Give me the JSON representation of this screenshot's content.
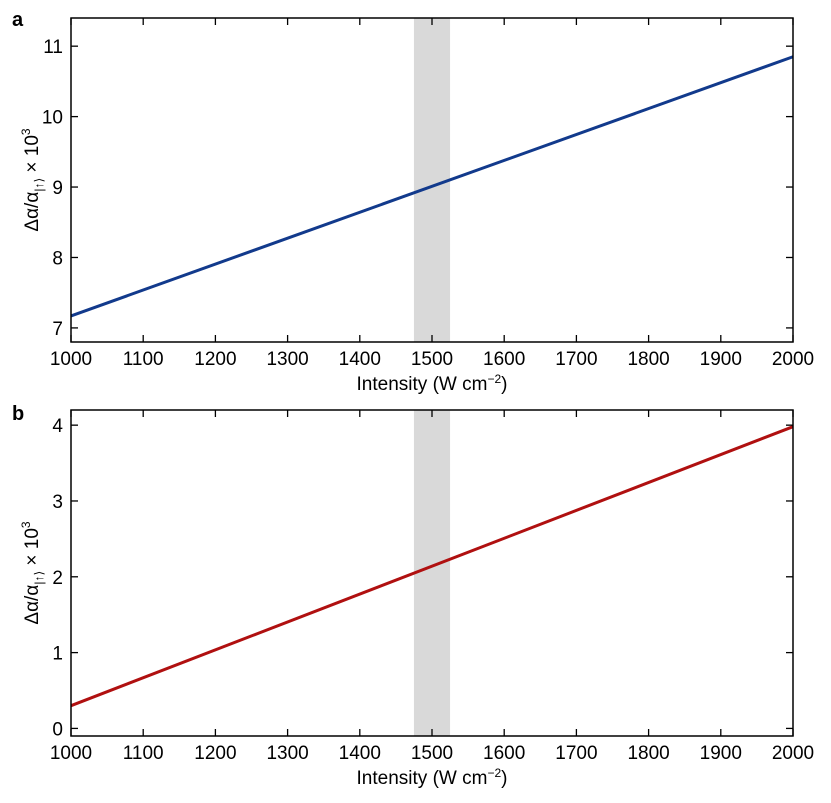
{
  "chart_data": [
    {
      "type": "line",
      "panel_label": "a",
      "xlabel": "Intensity (W cm",
      "xlabel_sup": "−2",
      "xlabel_end": ")",
      "ylabel_parts": {
        "pre": "Δα/α",
        "sub": "|↑⟩",
        "mid": " × 10",
        "sup": "3"
      },
      "xlim": [
        1000,
        2000
      ],
      "ylim": [
        6.8,
        11.4
      ],
      "xticks": [
        1000,
        1100,
        1200,
        1300,
        1400,
        1500,
        1600,
        1700,
        1800,
        1900,
        2000
      ],
      "yticks": [
        7,
        8,
        9,
        10,
        11
      ],
      "highlight_band": [
        1475,
        1525
      ],
      "color": "#123a8c",
      "series": [
        {
          "x": [
            1000,
            2000
          ],
          "y": [
            7.17,
            10.85
          ]
        }
      ]
    },
    {
      "type": "line",
      "panel_label": "b",
      "xlabel": "Intensity (W cm",
      "xlabel_sup": "−2",
      "xlabel_end": ")",
      "ylabel_parts": {
        "pre": "Δα/α",
        "sub": "|↑⟩",
        "mid": " × 10",
        "sup": "3"
      },
      "xlim": [
        1000,
        2000
      ],
      "ylim": [
        -0.1,
        4.2
      ],
      "xticks": [
        1000,
        1100,
        1200,
        1300,
        1400,
        1500,
        1600,
        1700,
        1800,
        1900,
        2000
      ],
      "yticks": [
        0,
        1,
        2,
        3,
        4
      ],
      "highlight_band": [
        1475,
        1525
      ],
      "color": "#b01010",
      "series": [
        {
          "x": [
            1000,
            2000
          ],
          "y": [
            0.3,
            3.98
          ]
        }
      ]
    }
  ]
}
